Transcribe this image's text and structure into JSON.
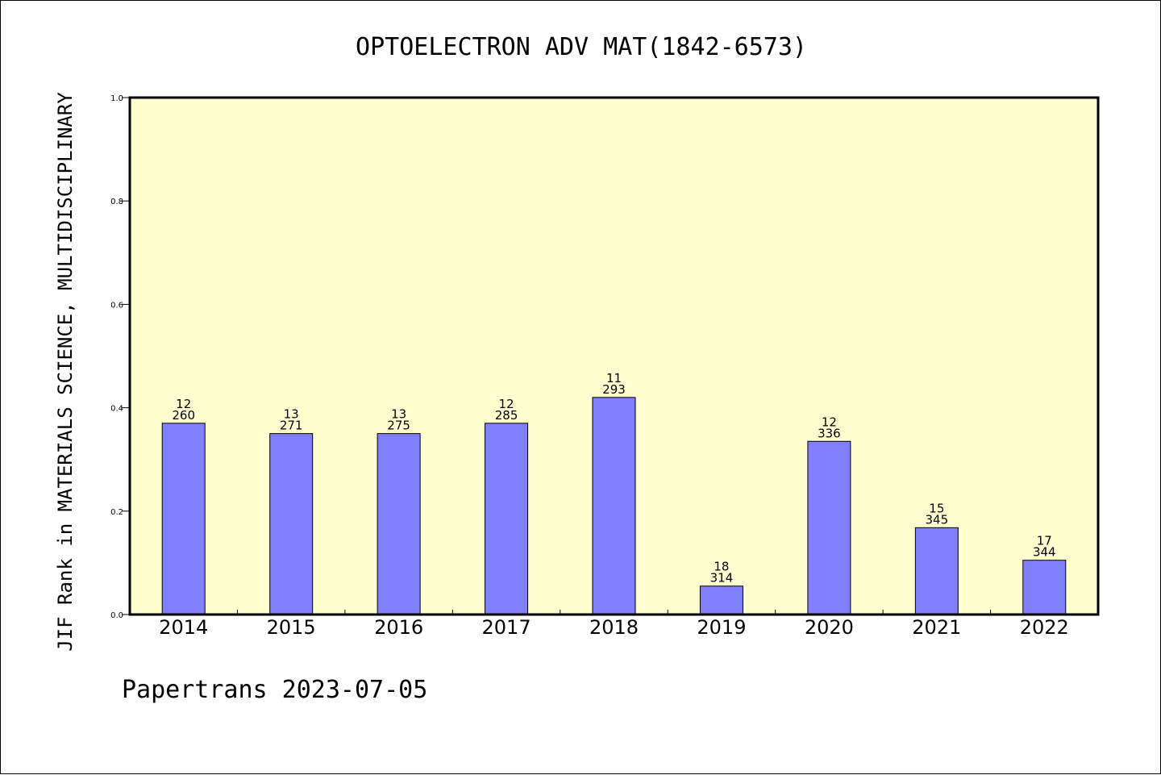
{
  "chart_data": {
    "type": "bar",
    "title": "OPTOELECTRON ADV MAT(1842-6573)",
    "xlabel": "",
    "ylabel": "JIF Rank in MATERIALS SCIENCE, MULTIDISCIPLINARY",
    "ylim": [
      0,
      1.0
    ],
    "yticks": [
      "0.0",
      "0.2",
      "0.4",
      "0.6",
      "0.8",
      "1.0"
    ],
    "categories": [
      "2014",
      "2015",
      "2016",
      "2017",
      "2018",
      "2019",
      "2020",
      "2021",
      "2022"
    ],
    "values": [
      0.37,
      0.35,
      0.35,
      0.37,
      0.42,
      0.055,
      0.335,
      0.168,
      0.105
    ],
    "rank_labels": [
      "12",
      "13",
      "13",
      "12",
      "11",
      "18",
      "12",
      "15",
      "17"
    ],
    "total_labels": [
      "260",
      "271",
      "275",
      "285",
      "293",
      "314",
      "336",
      "345",
      "344"
    ],
    "grid": false,
    "bar_color": "#8080ff",
    "plot_background": "#ffffd0"
  },
  "footer": "Papertrans 2023-07-05"
}
